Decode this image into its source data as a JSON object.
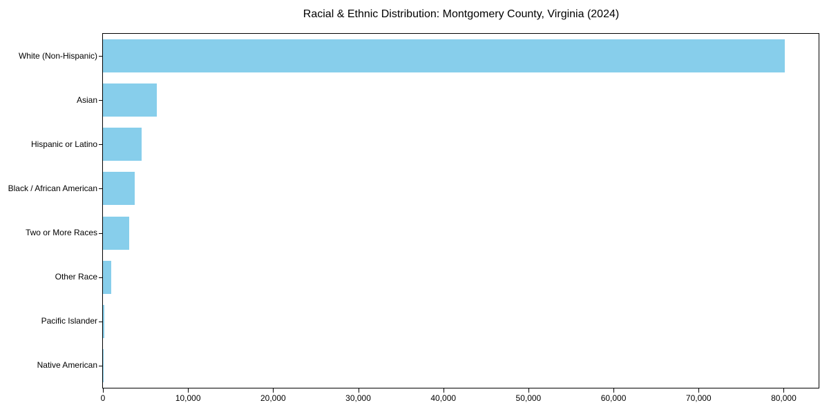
{
  "chart_data": {
    "type": "bar",
    "orientation": "horizontal",
    "title": "Racial & Ethnic Distribution: Montgomery County, Virginia (2024)",
    "categories": [
      "White (Non-Hispanic)",
      "Asian",
      "Hispanic or Latino",
      "Black / African American",
      "Two or More Races",
      "Other Race",
      "Pacific Islander",
      "Native American"
    ],
    "values": [
      80100,
      6300,
      4550,
      3730,
      3120,
      950,
      150,
      100
    ],
    "xlabel": "",
    "ylabel": "",
    "xlim": [
      0,
      84105
    ],
    "x_ticks": [
      0,
      10000,
      20000,
      30000,
      40000,
      50000,
      60000,
      70000,
      80000
    ],
    "x_tick_labels": [
      "0",
      "10,000",
      "20,000",
      "30,000",
      "40,000",
      "50,000",
      "60,000",
      "70,000",
      "80,000"
    ],
    "bar_color": "#87CEEB",
    "grid": false,
    "legend": "none",
    "background_color": "#ffffff",
    "axis_color": "#000000"
  }
}
